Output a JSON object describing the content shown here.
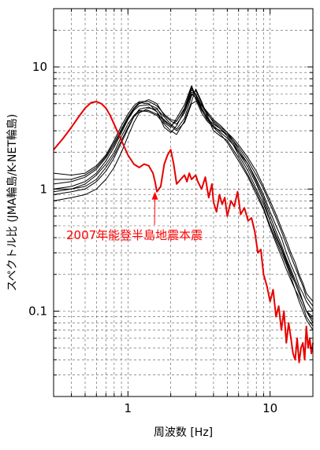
{
  "chart_data": {
    "type": "line",
    "x_scale": "log",
    "y_scale": "log",
    "xlim": [
      0.3,
      20
    ],
    "ylim": [
      0.02,
      30
    ],
    "xlabel": "周波数 [Hz]",
    "ylabel": "スペクトル比 (JMA輪島/K-NET輪島)",
    "x_ticks": [
      {
        "value": 1,
        "label": "1"
      },
      {
        "value": 10,
        "label": "10"
      }
    ],
    "y_ticks": [
      {
        "value": 0.1,
        "label": "0.1"
      },
      {
        "value": 1,
        "label": "1"
      },
      {
        "value": 10,
        "label": "10"
      }
    ],
    "grid": true,
    "annotation": {
      "text": "2007年能登半島地震本震",
      "color": "#ff0000",
      "points_to": {
        "x": 1.55,
        "y": 0.95
      }
    },
    "series": [
      {
        "name": "2007年能登半島地震本震",
        "color": "#e60000",
        "highlight": true,
        "x": [
          0.3,
          0.35,
          0.4,
          0.45,
          0.5,
          0.55,
          0.6,
          0.65,
          0.7,
          0.75,
          0.8,
          0.9,
          1.0,
          1.1,
          1.2,
          1.3,
          1.4,
          1.5,
          1.55,
          1.6,
          1.7,
          1.8,
          1.9,
          2.0,
          2.1,
          2.2,
          2.35,
          2.5,
          2.6,
          2.7,
          2.8,
          3.0,
          3.1,
          3.3,
          3.5,
          3.7,
          3.9,
          4.0,
          4.2,
          4.4,
          4.6,
          4.8,
          5.0,
          5.3,
          5.6,
          5.9,
          6.2,
          6.6,
          7.0,
          7.4,
          7.8,
          8.2,
          8.6,
          9.0,
          9.5,
          10,
          10.5,
          11,
          11.5,
          12,
          12.5,
          13,
          13.5,
          14,
          14.5,
          15,
          15.5,
          16,
          16.5,
          17,
          17.5,
          18,
          18.5,
          19,
          19.5,
          20
        ],
        "y": [
          2.1,
          2.6,
          3.2,
          3.9,
          4.6,
          5.1,
          5.2,
          5.0,
          4.6,
          4.0,
          3.4,
          2.5,
          1.9,
          1.6,
          1.5,
          1.6,
          1.55,
          1.35,
          1.15,
          0.95,
          1.05,
          1.6,
          1.9,
          2.1,
          1.6,
          1.1,
          1.2,
          1.3,
          1.15,
          1.35,
          1.2,
          1.3,
          1.15,
          1.0,
          1.25,
          0.85,
          1.1,
          0.78,
          0.65,
          0.9,
          0.75,
          0.85,
          0.6,
          0.8,
          0.72,
          0.95,
          0.62,
          0.7,
          0.55,
          0.58,
          0.45,
          0.3,
          0.32,
          0.2,
          0.16,
          0.12,
          0.15,
          0.09,
          0.11,
          0.07,
          0.1,
          0.055,
          0.08,
          0.06,
          0.045,
          0.04,
          0.06,
          0.038,
          0.05,
          0.055,
          0.04,
          0.075,
          0.05,
          0.06,
          0.045,
          0.055
        ]
      },
      {
        "name": "",
        "color": "#000000",
        "x": [
          0.3,
          0.4,
          0.5,
          0.6,
          0.7,
          0.8,
          0.9,
          1.0,
          1.1,
          1.2,
          1.4,
          1.6,
          1.8,
          2.0,
          2.2,
          2.5,
          2.8,
          3.0,
          3.3,
          3.6,
          4.0,
          4.5,
          5,
          5.5,
          6,
          7,
          8,
          9,
          10,
          11,
          12,
          13,
          14,
          15,
          16,
          17,
          18,
          20
        ],
        "y": [
          1.0,
          1.05,
          1.15,
          1.35,
          1.7,
          2.2,
          2.9,
          3.7,
          4.4,
          4.8,
          4.9,
          4.6,
          3.6,
          3.3,
          3.6,
          4.6,
          6.8,
          5.4,
          4.2,
          3.6,
          3.2,
          3.0,
          2.8,
          2.4,
          2.0,
          1.5,
          1.1,
          0.8,
          0.55,
          0.4,
          0.32,
          0.25,
          0.2,
          0.17,
          0.14,
          0.12,
          0.1,
          0.09
        ]
      },
      {
        "name": "",
        "color": "#000000",
        "x": [
          0.3,
          0.4,
          0.5,
          0.6,
          0.7,
          0.8,
          0.9,
          1.0,
          1.1,
          1.2,
          1.4,
          1.6,
          1.8,
          2.0,
          2.2,
          2.5,
          2.8,
          3.0,
          3.3,
          3.6,
          4.0,
          4.5,
          5,
          5.5,
          6,
          7,
          8,
          9,
          10,
          11,
          12,
          13,
          14,
          15,
          16,
          17,
          18,
          20
        ],
        "y": [
          0.9,
          0.95,
          1.0,
          1.15,
          1.4,
          1.8,
          2.4,
          3.1,
          3.9,
          4.5,
          4.7,
          4.3,
          3.2,
          2.9,
          3.3,
          4.4,
          6.2,
          6.0,
          4.6,
          3.9,
          3.0,
          2.7,
          2.5,
          2.1,
          1.8,
          1.3,
          0.95,
          0.7,
          0.5,
          0.38,
          0.3,
          0.24,
          0.19,
          0.15,
          0.13,
          0.11,
          0.09,
          0.075
        ]
      },
      {
        "name": "",
        "color": "#000000",
        "x": [
          0.3,
          0.4,
          0.5,
          0.6,
          0.7,
          0.8,
          0.9,
          1.0,
          1.1,
          1.2,
          1.4,
          1.6,
          1.8,
          2.0,
          2.2,
          2.5,
          2.8,
          3.0,
          3.3,
          3.6,
          4.0,
          4.5,
          5,
          5.5,
          6,
          7,
          8,
          9,
          10,
          11,
          12,
          13,
          14,
          15,
          16,
          17,
          18,
          20
        ],
        "y": [
          1.2,
          1.2,
          1.3,
          1.5,
          1.85,
          2.4,
          3.1,
          3.9,
          4.6,
          5.1,
          5.0,
          4.3,
          3.5,
          3.2,
          3.8,
          4.9,
          7.0,
          5.8,
          4.5,
          3.7,
          3.3,
          2.9,
          2.6,
          2.3,
          2.0,
          1.6,
          1.2,
          0.9,
          0.65,
          0.5,
          0.4,
          0.3,
          0.24,
          0.2,
          0.16,
          0.14,
          0.12,
          0.1
        ]
      },
      {
        "name": "",
        "color": "#000000",
        "x": [
          0.3,
          0.4,
          0.5,
          0.6,
          0.7,
          0.8,
          0.9,
          1.0,
          1.1,
          1.2,
          1.4,
          1.6,
          1.8,
          2.0,
          2.2,
          2.5,
          2.8,
          3.0,
          3.3,
          3.6,
          4.0,
          4.5,
          5,
          5.5,
          6,
          7,
          8,
          9,
          10,
          11,
          12,
          13,
          14,
          15,
          16,
          17,
          18,
          20
        ],
        "y": [
          0.8,
          0.85,
          0.9,
          1.0,
          1.2,
          1.5,
          2.0,
          2.7,
          3.5,
          4.2,
          4.6,
          4.5,
          3.9,
          3.4,
          3.1,
          3.8,
          5.8,
          6.4,
          5.0,
          4.2,
          3.5,
          3.1,
          2.7,
          2.3,
          1.9,
          1.4,
          1.0,
          0.75,
          0.55,
          0.42,
          0.33,
          0.26,
          0.21,
          0.17,
          0.14,
          0.12,
          0.1,
          0.08
        ]
      },
      {
        "name": "",
        "color": "#000000",
        "x": [
          0.3,
          0.4,
          0.5,
          0.6,
          0.7,
          0.8,
          0.9,
          1.0,
          1.1,
          1.2,
          1.4,
          1.6,
          1.8,
          2.0,
          2.2,
          2.5,
          2.8,
          3.0,
          3.3,
          3.6,
          4.0,
          4.5,
          5,
          5.5,
          6,
          7,
          8,
          9,
          10,
          11,
          12,
          13,
          14,
          15,
          16,
          17,
          18,
          20
        ],
        "y": [
          1.1,
          1.15,
          1.25,
          1.45,
          1.8,
          2.3,
          3.0,
          3.8,
          4.5,
          5.0,
          5.4,
          5.0,
          4.0,
          3.6,
          3.4,
          4.2,
          6.0,
          5.6,
          4.4,
          3.8,
          3.4,
          3.1,
          2.8,
          2.5,
          2.2,
          1.7,
          1.3,
          1.0,
          0.75,
          0.58,
          0.45,
          0.35,
          0.28,
          0.23,
          0.19,
          0.16,
          0.13,
          0.11
        ]
      },
      {
        "name": "",
        "color": "#000000",
        "x": [
          0.3,
          0.4,
          0.5,
          0.6,
          0.7,
          0.8,
          0.9,
          1.0,
          1.1,
          1.2,
          1.4,
          1.6,
          1.8,
          2.0,
          2.2,
          2.5,
          2.8,
          3.0,
          3.3,
          3.6,
          4.0,
          4.5,
          5,
          5.5,
          6,
          7,
          8,
          9,
          10,
          11,
          12,
          13,
          14,
          15,
          16,
          17,
          18,
          20
        ],
        "y": [
          1.0,
          1.0,
          1.1,
          1.3,
          1.6,
          2.0,
          2.7,
          3.4,
          4.0,
          4.4,
          4.3,
          4.0,
          3.4,
          3.0,
          2.8,
          3.6,
          5.2,
          6.6,
          5.2,
          4.0,
          3.2,
          2.8,
          2.4,
          2.0,
          1.7,
          1.25,
          0.9,
          0.68,
          0.48,
          0.36,
          0.28,
          0.22,
          0.18,
          0.15,
          0.12,
          0.1,
          0.085,
          0.07
        ]
      },
      {
        "name": "",
        "color": "#000000",
        "x": [
          0.3,
          0.4,
          0.5,
          0.6,
          0.7,
          0.8,
          0.9,
          1.0,
          1.1,
          1.2,
          1.4,
          1.6,
          1.8,
          2.0,
          2.2,
          2.5,
          2.8,
          3.0,
          3.3,
          3.6,
          4.0,
          4.5,
          5,
          5.5,
          6,
          7,
          8,
          9,
          10,
          11,
          12,
          13,
          14,
          15,
          16,
          17,
          18,
          20
        ],
        "y": [
          1.35,
          1.3,
          1.35,
          1.55,
          1.9,
          2.5,
          3.3,
          4.1,
          4.8,
          5.2,
          5.2,
          4.8,
          4.1,
          3.7,
          3.6,
          4.5,
          6.5,
          6.0,
          4.8,
          4.1,
          3.6,
          3.2,
          2.9,
          2.6,
          2.3,
          1.8,
          1.4,
          1.05,
          0.8,
          0.62,
          0.48,
          0.38,
          0.3,
          0.25,
          0.2,
          0.17,
          0.14,
          0.12
        ]
      },
      {
        "name": "",
        "color": "#000000",
        "x": [
          0.3,
          0.4,
          0.5,
          0.6,
          0.7,
          0.8,
          0.9,
          1.0,
          1.1,
          1.2,
          1.4,
          1.6,
          1.8,
          2.0,
          2.2,
          2.5,
          2.8,
          3.0,
          3.3,
          3.6,
          4.0,
          4.5,
          5,
          5.5,
          6,
          7,
          8,
          9,
          10,
          11,
          12,
          13,
          14,
          15,
          16,
          17,
          18,
          20
        ],
        "y": [
          0.95,
          1.0,
          1.05,
          1.2,
          1.5,
          1.9,
          2.5,
          3.2,
          3.9,
          4.3,
          4.4,
          4.1,
          3.7,
          3.3,
          3.0,
          3.5,
          5.0,
          5.2,
          4.9,
          4.3,
          3.7,
          3.3,
          2.9,
          2.5,
          2.1,
          1.6,
          1.15,
          0.85,
          0.6,
          0.45,
          0.35,
          0.27,
          0.22,
          0.18,
          0.15,
          0.12,
          0.1,
          0.085
        ]
      }
    ]
  }
}
